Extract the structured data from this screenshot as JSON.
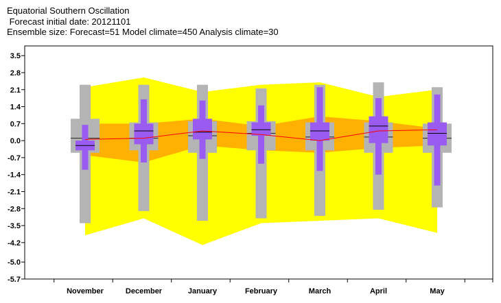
{
  "titles": {
    "line1": "Equatorial Southern Oscillation",
    "line2": " Forecast initial date: 20121101",
    "line3": "Ensemble size: Forecast=51 Model climate=450 Analysis climate=30"
  },
  "colors": {
    "outer_band": "#ffff00",
    "inner_band": "#ffb000",
    "climate_box": "#b4b4b4",
    "forecast_box": "#9a5cf0",
    "median_line": "#ff0000",
    "frame": "#000000"
  },
  "chart_data": {
    "type": "boxplot",
    "categories": [
      "November",
      "December",
      "January",
      "February",
      "March",
      "April",
      "May"
    ],
    "y_ticks": [
      "3.5",
      "2.8",
      "2.1",
      "1.4",
      "0.7",
      "0.0",
      "-0.7",
      "-1.4",
      "-2.1",
      "-2.8",
      "-3.5",
      "-4.2",
      "-5.0",
      "-5.7"
    ],
    "ylim": [
      -5.7,
      3.9
    ],
    "outer_band": {
      "upper": [
        2.2,
        2.6,
        2.0,
        2.3,
        2.4,
        1.8,
        2.1
      ],
      "lower": [
        -3.9,
        -3.2,
        -4.3,
        -3.4,
        -3.3,
        -3.2,
        -3.8
      ]
    },
    "inner_band": {
      "upper": [
        0.7,
        0.7,
        0.9,
        0.6,
        1.0,
        0.8,
        0.5
      ],
      "lower": [
        -0.6,
        -0.9,
        -0.2,
        -0.4,
        -0.5,
        -0.3,
        -0.2
      ]
    },
    "climate_median_line": [
      0.05,
      0.1,
      0.4,
      0.25,
      0.0,
      0.4,
      0.45
    ],
    "climate_boxes": [
      {
        "whisker_low": -3.4,
        "q1": -0.5,
        "median": 0.1,
        "q3": 0.9,
        "whisker_high": 2.3
      },
      {
        "whisker_low": -2.9,
        "q1": -0.4,
        "median": 0.1,
        "q3": 0.75,
        "whisker_high": 2.3
      },
      {
        "whisker_low": -3.3,
        "q1": -0.5,
        "median": 0.2,
        "q3": 0.8,
        "whisker_high": 2.3
      },
      {
        "whisker_low": -3.2,
        "q1": -0.4,
        "median": 0.3,
        "q3": 0.8,
        "whisker_high": 2.15
      },
      {
        "whisker_low": -3.1,
        "q1": -0.4,
        "median": 0.15,
        "q3": 0.75,
        "whisker_high": 2.3
      },
      {
        "whisker_low": -2.85,
        "q1": -0.5,
        "median": 0.15,
        "q3": 0.75,
        "whisker_high": 2.4
      },
      {
        "whisker_low": -2.75,
        "q1": -0.5,
        "median": 0.1,
        "q3": 0.7,
        "whisker_high": 2.2
      }
    ],
    "forecast_boxes": [
      {
        "whisker_low": -1.2,
        "q1": -0.4,
        "median": -0.2,
        "q3": 0.0,
        "whisker_high": 0.65
      },
      {
        "whisker_low": -0.9,
        "q1": -0.15,
        "median": 0.4,
        "q3": 0.7,
        "whisker_high": 1.7
      },
      {
        "whisker_low": -0.75,
        "q1": 0.05,
        "median": 0.35,
        "q3": 0.9,
        "whisker_high": 1.65
      },
      {
        "whisker_low": -0.95,
        "q1": 0.2,
        "median": 0.45,
        "q3": 0.75,
        "whisker_high": 1.45
      },
      {
        "whisker_low": -1.25,
        "q1": 0.0,
        "median": 0.4,
        "q3": 0.75,
        "whisker_high": 2.2
      },
      {
        "whisker_low": -1.4,
        "q1": -0.1,
        "median": 0.6,
        "q3": 1.0,
        "whisker_high": 1.75
      },
      {
        "whisker_low": -1.85,
        "q1": -0.2,
        "median": 0.3,
        "q3": 0.75,
        "whisker_high": 1.9
      }
    ]
  }
}
